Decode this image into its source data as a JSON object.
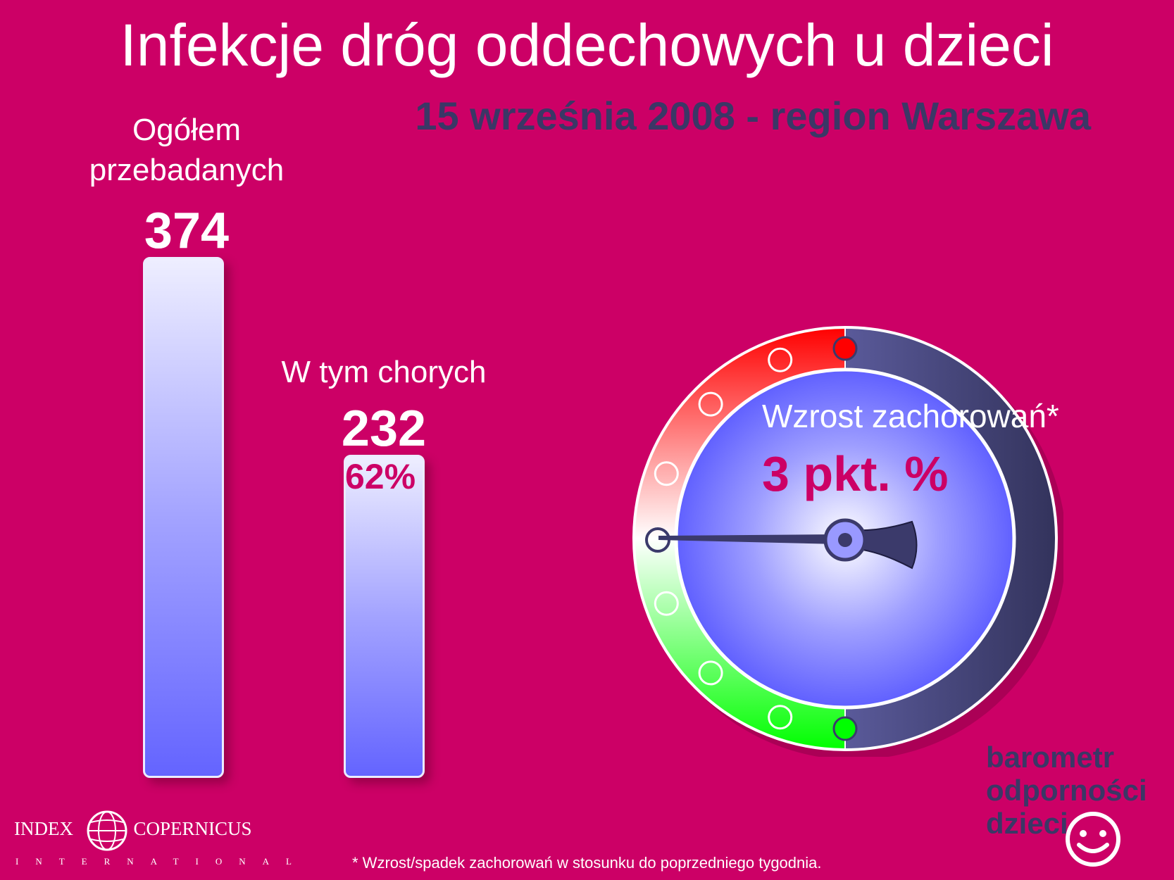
{
  "title": "Infekcje dróg oddechowych u dzieci",
  "subtitle": "15 września 2008 - region Warszawa",
  "chart_data": {
    "type": "bar",
    "categories": [
      "Ogółem przebadanych",
      "W tym chorych"
    ],
    "values": [
      374,
      232
    ],
    "ylim": [
      0,
      374
    ],
    "bar_labels": {
      "total_label_line1": "Ogółem",
      "total_label_line2": "przebadanych",
      "total_value": "374",
      "sick_label": "W tym chorych",
      "sick_value": "232",
      "sick_percent": "62%"
    }
  },
  "gauge": {
    "label": "Wzrost zachorowań*",
    "value_text": "3 pkt. %",
    "colors": {
      "red": "#ff0000",
      "green": "#00ff00",
      "dark": "#3b3a6b",
      "dial": "#6b6bff"
    }
  },
  "footnote": "* Wzrost/spadek zachorowań w stosunku do poprzedniego tygodnia.",
  "brand": {
    "line1": "barometr",
    "line2": "odporności",
    "line3": "dzieci",
    "icon": "smiley-icon"
  },
  "logo": {
    "name_left": "INDEX",
    "name_right": "COPERNICUS",
    "sub": "INTERNATIONAL",
    "icon": "globe-icon"
  }
}
